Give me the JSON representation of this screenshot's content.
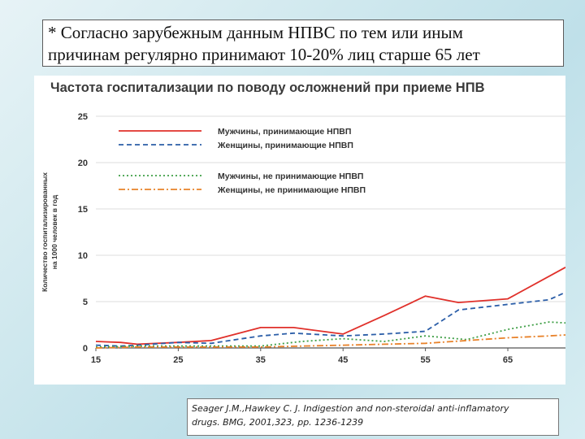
{
  "note": {
    "line1": "* Согласно зарубежным данным НПВС по тем или иным",
    "line2": "причинам регулярно принимают 10-20% лиц старше 65 лет"
  },
  "chart_data": {
    "type": "line",
    "title": "Частота госпитализации по поводу осложнений при приеме НПВ",
    "ylabel_line1": "Количество госпитализированных",
    "ylabel_line2": "на 1000 человек в год",
    "xlabel": "",
    "xlim": [
      15,
      72
    ],
    "ylim": [
      0,
      25
    ],
    "xticks": [
      15,
      25,
      35,
      45,
      55,
      65
    ],
    "yticks": [
      0,
      5,
      10,
      15,
      20,
      25
    ],
    "grid": "horizontal",
    "legend_position": "top-left",
    "series": [
      {
        "name": "Мужчины, принимающие НПВП",
        "color": "#e0302a",
        "dash": "solid",
        "x": [
          15,
          18,
          20,
          25,
          29,
          35,
          39,
          45,
          50,
          55,
          59,
          65,
          72
        ],
        "y": [
          0.7,
          0.6,
          0.4,
          0.6,
          0.8,
          2.2,
          2.2,
          1.5,
          3.5,
          5.6,
          4.9,
          5.3,
          8.7
        ]
      },
      {
        "name": "Женщины, принимающие НПВП",
        "color": "#2b5ea8",
        "dash": "6,4",
        "x": [
          15,
          18,
          20,
          25,
          29,
          35,
          39,
          45,
          50,
          55,
          59,
          65,
          70,
          72
        ],
        "y": [
          0.3,
          0.2,
          0.3,
          0.6,
          0.5,
          1.3,
          1.6,
          1.3,
          1.5,
          1.8,
          4.1,
          4.7,
          5.2,
          6.0
        ]
      },
      {
        "name": "Мужчины, не принимающие НПВП",
        "color": "#3e9e45",
        "dash": "2,3",
        "x": [
          15,
          20,
          25,
          30,
          35,
          40,
          45,
          50,
          55,
          60,
          65,
          70,
          72
        ],
        "y": [
          0.1,
          0.2,
          0.2,
          0.2,
          0.2,
          0.7,
          1.0,
          0.7,
          1.3,
          0.9,
          2.0,
          2.8,
          2.7
        ]
      },
      {
        "name": "Женщины, не принимающие НПВП",
        "color": "#e8822a",
        "dash": "8,3,2,3",
        "x": [
          15,
          20,
          25,
          30,
          35,
          40,
          45,
          50,
          55,
          60,
          65,
          70,
          72
        ],
        "y": [
          0.0,
          0.1,
          0.1,
          0.1,
          0.1,
          0.2,
          0.3,
          0.4,
          0.5,
          0.8,
          1.1,
          1.3,
          1.4
        ]
      }
    ]
  },
  "citation": {
    "line1": "Seager J.M.,Hawkey C. J. Indigestion and non-steroidal anti-inflamatory",
    "line2": "drugs. BMG, 2001,323, pp. 1236-1239"
  }
}
